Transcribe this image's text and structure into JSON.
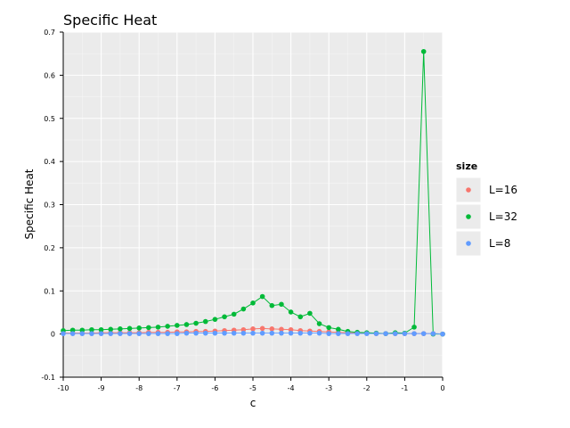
{
  "chart_data": {
    "type": "line",
    "title": "Specific Heat",
    "xlabel": "c",
    "ylabel": "Specific Heat",
    "xlim": [
      -10,
      0
    ],
    "ylim": [
      -0.1,
      0.7
    ],
    "x_ticks": [
      -10,
      -9,
      -8,
      -7,
      -6,
      -5,
      -4,
      -3,
      -2,
      -1,
      0
    ],
    "y_ticks": [
      -0.1,
      0,
      0.1,
      0.2,
      0.3,
      0.4,
      0.5,
      0.6,
      0.7
    ],
    "x_tick_labels": [
      "-10",
      "-9",
      "-8",
      "-7",
      "-6",
      "-5",
      "-4",
      "-3",
      "-2",
      "-1",
      "0"
    ],
    "y_tick_labels": [
      "-0.1",
      "0",
      "0.1",
      "0.2",
      "0.3",
      "0.4",
      "0.5",
      "0.6",
      "0.7"
    ],
    "grid": true,
    "legend_title": "size",
    "legend_position": "right",
    "x": [
      -10,
      -9.75,
      -9.5,
      -9.25,
      -9,
      -8.75,
      -8.5,
      -8.25,
      -8,
      -7.75,
      -7.5,
      -7.25,
      -7,
      -6.75,
      -6.5,
      -6.25,
      -6,
      -5.75,
      -5.5,
      -5.25,
      -5,
      -4.75,
      -4.5,
      -4.25,
      -4,
      -3.75,
      -3.5,
      -3.25,
      -3,
      -2.75,
      -2.5,
      -2.25,
      -2,
      -1.75,
      -1.5,
      -1.25,
      -1,
      -0.75,
      -0.5,
      -0.25,
      0
    ],
    "series": [
      {
        "name": "L=16",
        "color": "#F8766D",
        "values": [
          0.002,
          0.002,
          0.002,
          0.002,
          0.003,
          0.003,
          0.003,
          0.003,
          0.003,
          0.004,
          0.004,
          0.004,
          0.005,
          0.005,
          0.006,
          0.006,
          0.007,
          0.008,
          0.009,
          0.01,
          0.012,
          0.013,
          0.012,
          0.011,
          0.01,
          0.008,
          0.007,
          0.006,
          0.005,
          0.004,
          0.003,
          0.002,
          0.002,
          0.001,
          0.001,
          0.001,
          0.001,
          0.001,
          0.001,
          0.001,
          0.0
        ]
      },
      {
        "name": "L=32",
        "color": "#00BA38",
        "values": [
          0.008,
          0.009,
          0.009,
          0.01,
          0.01,
          0.011,
          0.012,
          0.013,
          0.014,
          0.015,
          0.016,
          0.018,
          0.02,
          0.022,
          0.025,
          0.029,
          0.034,
          0.04,
          0.046,
          0.058,
          0.072,
          0.087,
          0.066,
          0.069,
          0.051,
          0.04,
          0.048,
          0.024,
          0.015,
          0.011,
          0.006,
          0.004,
          0.003,
          0.002,
          0.001,
          0.003,
          0.002,
          0.016,
          0.655,
          0.0,
          0.0
        ]
      },
      {
        "name": "L=8",
        "color": "#619CFF",
        "values": [
          0.001,
          0.001,
          0.001,
          0.001,
          0.001,
          0.001,
          0.001,
          0.001,
          0.001,
          0.001,
          0.001,
          0.001,
          0.001,
          0.002,
          0.002,
          0.002,
          0.002,
          0.002,
          0.002,
          0.002,
          0.002,
          0.002,
          0.002,
          0.002,
          0.002,
          0.002,
          0.002,
          0.002,
          0.001,
          0.001,
          0.001,
          0.001,
          0.001,
          0.001,
          0.001,
          0.001,
          0.001,
          0.001,
          0.001,
          0.001,
          0.0
        ]
      }
    ]
  }
}
